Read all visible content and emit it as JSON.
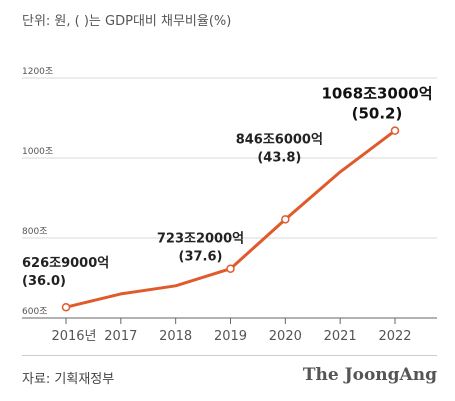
{
  "unit_note": "단위: 원, ( )는 GDP대비 채무비율(%)",
  "source": "자료: 기획재정부",
  "brand": "The JoongAng",
  "colors": {
    "line": "#e05a2b",
    "grid": "#d9d9d9",
    "text": "#333333"
  },
  "chart_data": {
    "type": "line",
    "x": [
      "2016년",
      "2017",
      "2018",
      "2019",
      "2020",
      "2021",
      "2022"
    ],
    "series": [
      {
        "values": [
          626.9,
          660.2,
          680.5,
          723.2,
          846.6,
          965.3,
          1068.3
        ]
      }
    ],
    "ylim": [
      600,
      1200
    ],
    "yticks": [
      "600조",
      "800조",
      "1000조",
      "1200조"
    ],
    "ytick_values": [
      600,
      800,
      1000,
      1200
    ],
    "grid": true,
    "annotations": [
      {
        "index": 0,
        "lines": [
          "626조9000억",
          "(36.0)"
        ]
      },
      {
        "index": 3,
        "lines": [
          "723조2000억",
          "(37.6)"
        ]
      },
      {
        "index": 4,
        "lines": [
          "846조6000억",
          "(43.8)"
        ]
      },
      {
        "index": 6,
        "lines": [
          "1068조3000억",
          "(50.2)"
        ]
      }
    ]
  }
}
